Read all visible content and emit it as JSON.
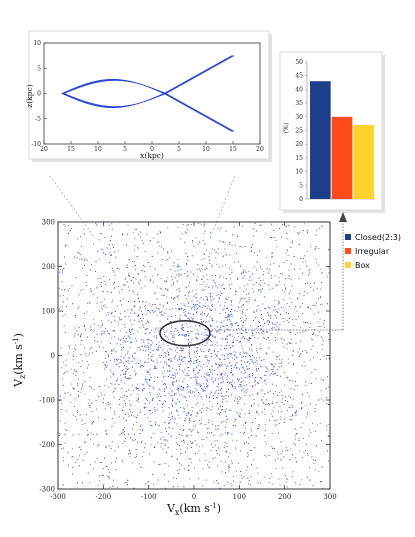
{
  "chart_data": [
    {
      "type": "line",
      "xlabel": "x(kpc)",
      "ylabel": "z(kpc)",
      "xlim": [
        20,
        -20
      ],
      "ylim": [
        -10,
        10
      ],
      "xticks": [
        "20",
        "15",
        "10",
        "5",
        "0",
        "5",
        "10",
        "15",
        "20"
      ],
      "yticks": [
        "10",
        "5",
        "0",
        "-5",
        "-10"
      ],
      "color": "#1f3fd6",
      "orbit": {
        "description_values": {
          "x_extent": [
            -16.5,
            15
          ],
          "z_extent": [
            -7.5,
            7.5
          ],
          "loop_apex_z": 2.7
        }
      }
    },
    {
      "type": "bar",
      "ylabel": "(%)",
      "ylim": [
        0,
        50
      ],
      "yticks": [
        "0",
        "5",
        "10",
        "15",
        "20",
        "25",
        "30",
        "35",
        "40",
        "45",
        "50"
      ],
      "categories": [
        "Closed(2:3)",
        "Irregular",
        "Box"
      ],
      "values": [
        43,
        30,
        27
      ],
      "colors": [
        "#1c3f8c",
        "#ff4b1a",
        "#ffd22e"
      ],
      "legend": {
        "position": "right",
        "entries": [
          "Closed(2:3)",
          "Irregular",
          "Box"
        ]
      }
    },
    {
      "type": "scatter",
      "xlabel_main": "V",
      "xlabel_sub": "x",
      "xlabel_rest": "(km s",
      "xlabel_sup": "-1",
      "xlabel_close": ")",
      "ylabel_main": "V",
      "ylabel_sub": "z",
      "ylabel_rest": "(km s",
      "ylabel_sup": "-1",
      "ylabel_close": ")",
      "xlim": [
        -300,
        300
      ],
      "ylim": [
        -300,
        300
      ],
      "xticks": [
        "-300",
        "-200",
        "-100",
        "0",
        "100",
        "200",
        "300"
      ],
      "yticks": [
        "300",
        "200",
        "100",
        "0",
        "-100",
        "-200",
        "-300"
      ],
      "point_color": "#2346e0",
      "highlight_ellipse": {
        "cx": -20,
        "cy": 50,
        "rx": 55,
        "ry": 28
      }
    }
  ]
}
